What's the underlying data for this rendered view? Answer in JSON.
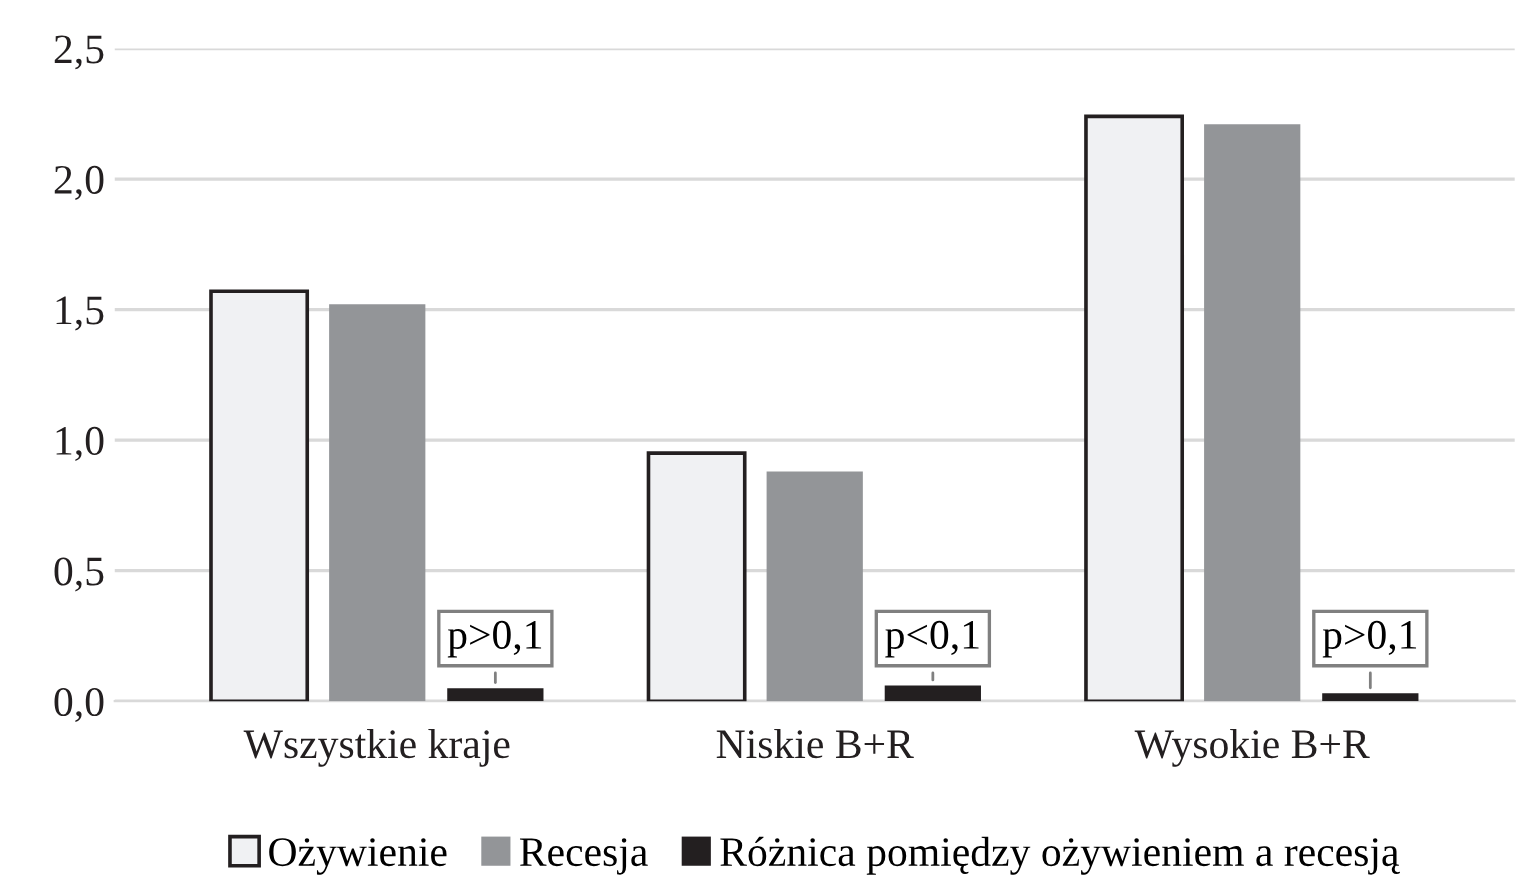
{
  "chart_data": {
    "type": "bar",
    "categories": [
      "Wszystkie kraje",
      "Niskie B+R",
      "Wysokie B+R"
    ],
    "series": [
      {
        "name": "Ożywienie",
        "color": "#f0f1f3",
        "values": [
          1.57,
          0.95,
          2.24
        ]
      },
      {
        "name": "Recesja",
        "color": "#939598",
        "values": [
          1.52,
          0.88,
          2.21
        ]
      },
      {
        "name": "Różnica pomiędzy ożywieniem a recesją",
        "color": "#231f20",
        "values": [
          0.05,
          0.06,
          0.03
        ]
      }
    ],
    "ylim": [
      0,
      2.5
    ],
    "yticks": [
      {
        "value": 0,
        "label": "0,0"
      },
      {
        "value": 0.5,
        "label": "0,5"
      },
      {
        "value": 1.0,
        "label": "1,0"
      },
      {
        "value": 1.5,
        "label": "1,5"
      },
      {
        "value": 2.0,
        "label": "2,0"
      },
      {
        "value": 2.5,
        "label": "2,5"
      }
    ],
    "grid": "y",
    "legend": "bottom",
    "annotations": [
      "p>0,1",
      "p<0,1",
      "p>0,1"
    ]
  }
}
